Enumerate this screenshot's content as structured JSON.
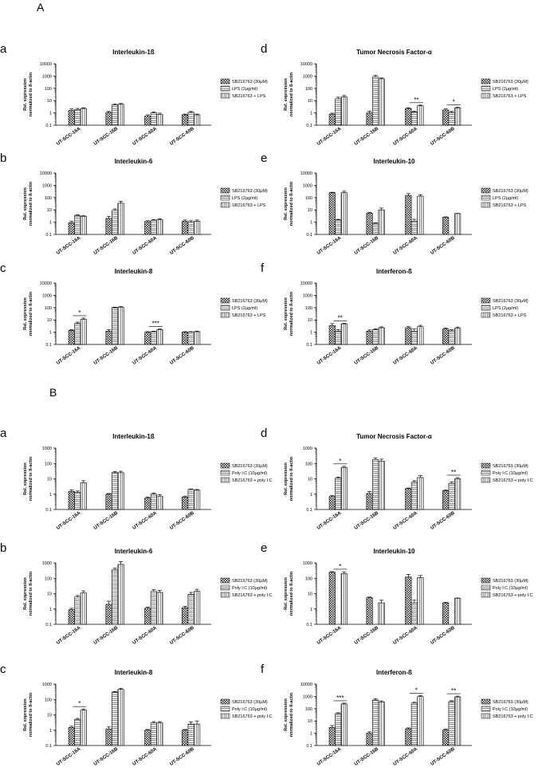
{
  "section_a_label": "A",
  "section_b_label": "B",
  "ylabel_line1": "Rel. expression",
  "ylabel_line2": "normalized to ß-actin",
  "y_ticks": [
    "10000",
    "1000",
    "100",
    "10",
    "1",
    "0.1"
  ],
  "legend_a": [
    "SB216763 (30µM)",
    "LPS (2µg/ml)",
    "SB216763 + LPS"
  ],
  "legend_b": [
    "SB216763 (30µM)",
    "Poly I:C (10µg/ml)",
    "SB216763 + poly I:C"
  ],
  "colors": {
    "bar_fill": "#ffffff",
    "bar_stroke": "#000000",
    "dark_pattern": "#222222",
    "text": "#000000"
  },
  "chart_data": [
    {
      "type": "bar",
      "section": "A",
      "letter": "a",
      "title": "Interleukin-1ß",
      "scale": "log",
      "ylim": [
        0.1,
        10000
      ],
      "categories": [
        "UT-SCC-16A",
        "UT-SCC-16B",
        "UT-SCC-60A",
        "UT-SCC-60B"
      ],
      "series": [
        {
          "name": "SB216763 (30µM)",
          "values": [
            1.6,
            1.1,
            0.55,
            0.7
          ]
        },
        {
          "name": "LPS (2µg/ml)",
          "values": [
            1.9,
            4.5,
            1.0,
            1.1
          ]
        },
        {
          "name": "SB216763 + LPS",
          "values": [
            2.3,
            5.0,
            0.75,
            0.7
          ]
        }
      ],
      "errors": [
        [
          0.5,
          0.2,
          0.15,
          0.1
        ],
        [
          0.4,
          0.8,
          0.2,
          0.2
        ],
        [
          0.3,
          0.8,
          0.2,
          0.1
        ]
      ],
      "annotations": []
    },
    {
      "type": "bar",
      "section": "A",
      "letter": "d",
      "title": "Tumor Necrosis Factor-α",
      "scale": "log",
      "ylim": [
        0.1,
        10000
      ],
      "categories": [
        "UT-SCC-16A",
        "UT-SCC-16B",
        "UT-SCC-60A",
        "UT-SCC-60B"
      ],
      "series": [
        {
          "name": "SB216763 (30µM)",
          "values": [
            0.8,
            1.0,
            2.3,
            1.7
          ]
        },
        {
          "name": "LPS (2µg/ml)",
          "values": [
            14,
            850,
            1.2,
            1.1
          ]
        },
        {
          "name": "SB216763 + LPS",
          "values": [
            20,
            600,
            3.8,
            2.6
          ]
        }
      ],
      "errors": [
        [
          0.15,
          0.4,
          0.3,
          0.4
        ],
        [
          5,
          300,
          0.2,
          0.2
        ],
        [
          6,
          100,
          0.5,
          0.3
        ]
      ],
      "annotations": [
        {
          "label": "**",
          "category": 2
        },
        {
          "label": "*",
          "category": 3
        }
      ]
    },
    {
      "type": "bar",
      "section": "A",
      "letter": "b",
      "title": "Interleukin-6",
      "scale": "log",
      "ylim": [
        0.1,
        10000
      ],
      "categories": [
        "UT-SCC-16A",
        "UT-SCC-16B",
        "UT-SCC-60A",
        "UT-SCC-60B"
      ],
      "series": [
        {
          "name": "SB216763 (30µM)",
          "values": [
            0.9,
            2.0,
            1.1,
            1.2
          ]
        },
        {
          "name": "LPS (2µg/ml)",
          "values": [
            3.5,
            9.0,
            1.4,
            1.0
          ]
        },
        {
          "name": "SB216763 + LPS",
          "values": [
            3.0,
            35,
            1.6,
            1.2
          ]
        }
      ],
      "errors": [
        [
          0.3,
          1.0,
          0.2,
          0.3
        ],
        [
          0.6,
          3.0,
          0.2,
          0.3
        ],
        [
          0.5,
          15,
          0.3,
          0.3
        ]
      ],
      "annotations": []
    },
    {
      "type": "bar",
      "section": "A",
      "letter": "e",
      "title": "Interleukin-10",
      "scale": "log",
      "ylim": [
        0.1,
        10000
      ],
      "categories": [
        "UT-SCC-16A",
        "UT-SCC-16B",
        "UT-SCC-60A",
        "UT-SCC-60B"
      ],
      "series": [
        {
          "name": "SB216763 (30µM)",
          "values": [
            250,
            5.5,
            150,
            2.5
          ]
        },
        {
          "name": "LPS (2µg/ml)",
          "values": [
            1.5,
            0.8,
            1.2,
            0
          ]
        },
        {
          "name": "SB216763 + LPS",
          "values": [
            250,
            10,
            130,
            5.0
          ]
        }
      ],
      "errors": [
        [
          20,
          0.8,
          60,
          0.2
        ],
        [
          0.2,
          0.1,
          0.5,
          0
        ],
        [
          80,
          4,
          40,
          0.2
        ]
      ],
      "annotations": []
    },
    {
      "type": "bar",
      "section": "A",
      "letter": "c",
      "title": "Interleukin-8",
      "scale": "log",
      "ylim": [
        0.1,
        10000
      ],
      "categories": [
        "UT-SCC-16A",
        "UT-SCC-16B",
        "UT-SCC-60A",
        "UT-SCC-60B"
      ],
      "series": [
        {
          "name": "SB216763 (30µM)",
          "values": [
            1.4,
            1.2,
            1.0,
            1.0
          ]
        },
        {
          "name": "LPS (2µg/ml)",
          "values": [
            5.0,
            100,
            1.1,
            1.0
          ]
        },
        {
          "name": "SB216763 + LPS",
          "values": [
            11,
            110,
            1.6,
            1.1
          ]
        }
      ],
      "errors": [
        [
          0.2,
          0.4,
          0.1,
          0.1
        ],
        [
          1.5,
          8,
          0.1,
          0.1
        ],
        [
          3,
          10,
          0.2,
          0.1
        ]
      ],
      "annotations": [
        {
          "label": "*",
          "category": 0
        },
        {
          "label": "***",
          "category": 2
        }
      ]
    },
    {
      "type": "bar",
      "section": "A",
      "letter": "f",
      "title": "Interferon-ß",
      "scale": "log",
      "ylim": [
        0.1,
        10000
      ],
      "categories": [
        "UT-SCC-16A",
        "UT-SCC-16B",
        "UT-SCC-60A",
        "UT-SCC-60B"
      ],
      "series": [
        {
          "name": "SB216763 (30µM)",
          "values": [
            3.5,
            1.2,
            2.3,
            1.8
          ]
        },
        {
          "name": "LPS (2µg/ml)",
          "values": [
            1.2,
            1.6,
            1.2,
            1.3
          ]
        },
        {
          "name": "SB216763 + LPS",
          "values": [
            4.8,
            2.3,
            2.8,
            2.1
          ]
        }
      ],
      "errors": [
        [
          1.5,
          0.3,
          0.5,
          0.4
        ],
        [
          0.4,
          0.3,
          0.6,
          0.3
        ],
        [
          0.5,
          0.4,
          0.8,
          0.5
        ]
      ],
      "annotations": [
        {
          "label": "**",
          "category": 0
        }
      ]
    },
    {
      "type": "bar",
      "section": "B",
      "letter": "a",
      "title": "Interleukin-1ß",
      "scale": "log",
      "ylim": [
        0.1,
        1000
      ],
      "categories": [
        "UT-SCC-16A",
        "UT-SCC-16B",
        "UT-SCC-60A",
        "UT-SCC-60B"
      ],
      "series": [
        {
          "name": "SB216763 (30µM)",
          "values": [
            1.5,
            1.0,
            0.55,
            0.65
          ]
        },
        {
          "name": "Poly I:C (10µg/ml)",
          "values": [
            1.3,
            25,
            1.0,
            2.0
          ]
        },
        {
          "name": "SB216763 + poly I:C",
          "values": [
            5.5,
            25,
            0.75,
            1.8
          ]
        }
      ],
      "errors": [
        [
          0.4,
          0.1,
          0.1,
          0.1
        ],
        [
          0.3,
          5,
          0.2,
          0.2
        ],
        [
          2,
          6,
          0.2,
          0.2
        ]
      ],
      "annotations": []
    },
    {
      "type": "bar",
      "section": "B",
      "letter": "d",
      "title": "Tumor Necrosis Factor-α",
      "scale": "log",
      "ylim": [
        0.1,
        1000
      ],
      "categories": [
        "UT-SCC-16A",
        "UT-SCC-16B",
        "UT-SCC-60A",
        "UT-SCC-60B"
      ],
      "series": [
        {
          "name": "SB216763 (30µM)",
          "values": [
            0.7,
            1.1,
            2.3,
            1.7
          ]
        },
        {
          "name": "Poly I:C (10µg/ml)",
          "values": [
            11,
            180,
            6.0,
            5.0
          ]
        },
        {
          "name": "SB216763 + poly I:C",
          "values": [
            55,
            140,
            12,
            10
          ]
        }
      ],
      "errors": [
        [
          0.1,
          0.4,
          0.2,
          0.2
        ],
        [
          2,
          50,
          1.5,
          1.2
        ],
        [
          10,
          50,
          4,
          2
        ]
      ],
      "annotations": [
        {
          "label": "*",
          "category": 0
        },
        {
          "label": "**",
          "category": 3
        }
      ]
    },
    {
      "type": "bar",
      "section": "B",
      "letter": "b",
      "title": "Interleukin-6",
      "scale": "log",
      "ylim": [
        0.1,
        1000
      ],
      "categories": [
        "UT-SCC-16A",
        "UT-SCC-16B",
        "UT-SCC-60A",
        "UT-SCC-60B"
      ],
      "series": [
        {
          "name": "SB216763 (30µM)",
          "values": [
            0.9,
            2.0,
            1.1,
            1.2
          ]
        },
        {
          "name": "Poly I:C (10µg/ml)",
          "values": [
            6.0,
            350,
            14,
            9.0
          ]
        },
        {
          "name": "SB216763 + poly I:C",
          "values": [
            11,
            800,
            12,
            14
          ]
        }
      ],
      "errors": [
        [
          0.2,
          1.2,
          0.2,
          0.3
        ],
        [
          1.5,
          100,
          4,
          3
        ],
        [
          4,
          400,
          4,
          5
        ]
      ],
      "annotations": []
    },
    {
      "type": "bar",
      "section": "B",
      "letter": "e",
      "title": "Interleukin-10",
      "scale": "log",
      "ylim": [
        0.1,
        1000
      ],
      "categories": [
        "UT-SCC-16A",
        "UT-SCC-16B",
        "UT-SCC-60A",
        "UT-SCC-60B"
      ],
      "series": [
        {
          "name": "SB216763 (30µM)",
          "values": [
            250,
            5.5,
            120,
            2.5
          ]
        },
        {
          "name": "Poly I:C (10µg/ml)",
          "values": [
            0,
            0,
            2.5,
            0
          ]
        },
        {
          "name": "SB216763 + poly I:C",
          "values": [
            200,
            2.5,
            110,
            5.0
          ]
        }
      ],
      "errors": [
        [
          20,
          0.5,
          60,
          0.2
        ],
        [
          0,
          0,
          1.2,
          0
        ],
        [
          60,
          1.2,
          40,
          0.2
        ]
      ],
      "annotations": [
        {
          "label": "*",
          "category": 0
        }
      ]
    },
    {
      "type": "bar",
      "section": "B",
      "letter": "c",
      "title": "Interleukin-8",
      "scale": "log",
      "ylim": [
        0.1,
        1000
      ],
      "categories": [
        "UT-SCC-16A",
        "UT-SCC-16B",
        "UT-SCC-60A",
        "UT-SCC-60B"
      ],
      "series": [
        {
          "name": "SB216763 (30µM)",
          "values": [
            1.5,
            1.2,
            1.0,
            1.0
          ]
        },
        {
          "name": "Poly I:C (10µg/ml)",
          "values": [
            5.0,
            300,
            3.0,
            2.5
          ]
        },
        {
          "name": "SB216763 + poly I:C",
          "values": [
            20,
            450,
            3.0,
            2.5
          ]
        }
      ],
      "errors": [
        [
          0.3,
          0.4,
          0.1,
          0.1
        ],
        [
          0.8,
          30,
          0.6,
          1.0
        ],
        [
          4,
          80,
          0.6,
          1.5
        ]
      ],
      "annotations": [
        {
          "label": "*",
          "category": 0
        }
      ]
    },
    {
      "type": "bar",
      "section": "B",
      "letter": "f",
      "title": "Interferon-ß",
      "scale": "log",
      "ylim": [
        0.1,
        10000
      ],
      "categories": [
        "UT-SCC-16A",
        "UT-SCC-16B",
        "UT-SCC-60A",
        "UT-SCC-60B"
      ],
      "series": [
        {
          "name": "SB216763 (30µM)",
          "values": [
            3.0,
            1.0,
            2.3,
            1.8
          ]
        },
        {
          "name": "Poly I:C (10µg/ml)",
          "values": [
            40,
            500,
            280,
            380
          ]
        },
        {
          "name": "SB216763 + poly I:C",
          "values": [
            240,
            350,
            950,
            900
          ]
        }
      ],
      "errors": [
        [
          1.2,
          0.3,
          0.4,
          0.3
        ],
        [
          6,
          150,
          50,
          60
        ],
        [
          40,
          80,
          200,
          150
        ]
      ],
      "annotations": [
        {
          "label": "***",
          "category": 0
        },
        {
          "label": "*",
          "category": 2
        },
        {
          "label": "**",
          "category": 3
        }
      ]
    }
  ]
}
